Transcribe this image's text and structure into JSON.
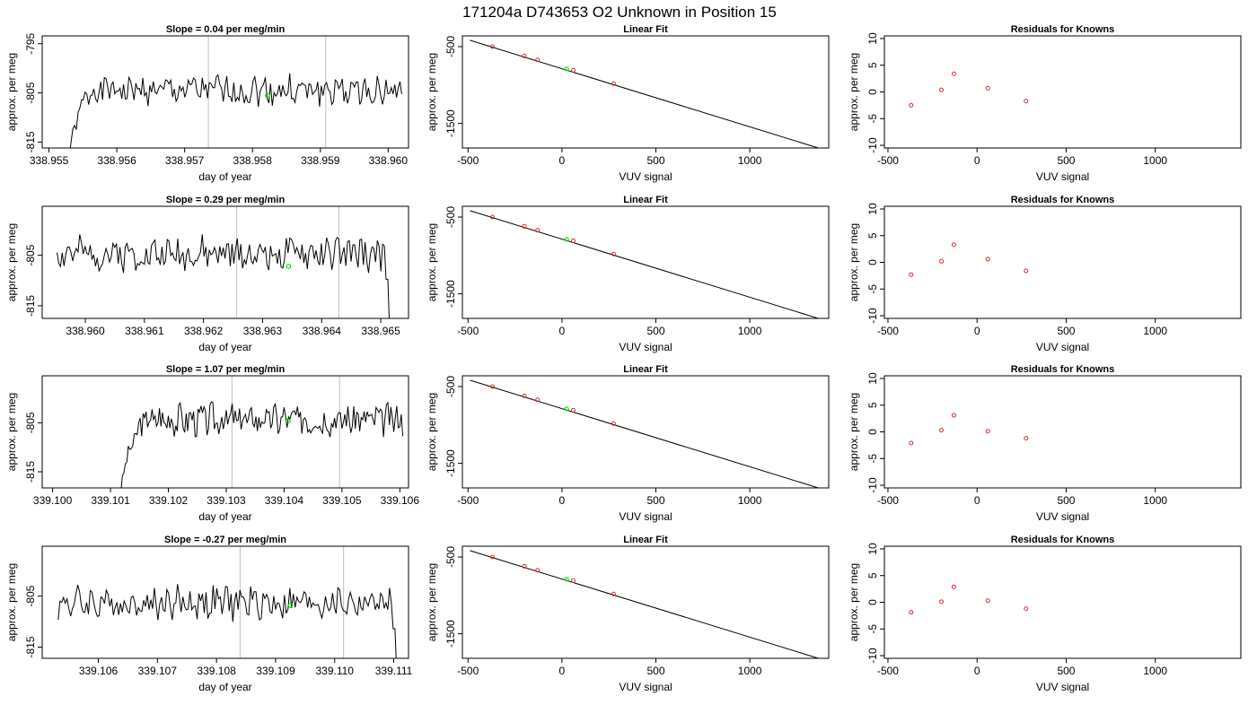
{
  "figure": {
    "title": "171204a      D743653    O2 Unknown in Position  15"
  },
  "colors": {
    "trace": "#000000",
    "marker_cycle": "#00e000",
    "vline": "#c8c8c8",
    "points": "#d03030"
  },
  "chart_data": [
    {
      "type": "line",
      "title": "Slope =  0.04  per meg/min",
      "xlabel": "day of year",
      "ylabel": "approx. per meg",
      "xlim": [
        338.9549,
        338.9603
      ],
      "ylim": [
        -816.2,
        -793.4
      ],
      "xticks": [
        338.955,
        338.956,
        338.957,
        338.958,
        338.959,
        338.96
      ],
      "xtick_labels": [
        "338.955",
        "338.956",
        "338.957",
        "338.958",
        "338.959",
        "338.960"
      ],
      "yticks": [
        -815,
        -805,
        -795
      ],
      "ytick_labels": [
        "-815",
        "-805",
        "-795"
      ],
      "vlines": [
        338.95735,
        338.95908
      ],
      "green_marker": {
        "x": 338.95822,
        "y": -805.5
      },
      "trace": {
        "x_start": 338.9553,
        "x_end": 338.9602,
        "rise_end": 338.9556,
        "start_y": -818,
        "base": -804.5,
        "amp": 1.6,
        "seed": 1,
        "end_y": null
      }
    },
    {
      "type": "line",
      "title": "Linear Fit",
      "xlabel": "VUV signal",
      "ylabel": "approx. per meg",
      "xlim": [
        -530,
        1420
      ],
      "ylim": [
        -1820,
        -360
      ],
      "xticks": [
        -500,
        0,
        500,
        1000
      ],
      "xtick_labels": [
        "-500",
        "0",
        "500",
        "1000"
      ],
      "yticks": [
        -500,
        -1500
      ],
      "ytick_labels": [
        "-500",
        "-1500"
      ],
      "fit_line": {
        "x": [
          -490,
          1400
        ],
        "y": [
          -417,
          -1847
        ]
      },
      "points": {
        "x": [
          -370,
          -200,
          -130,
          60,
          275
        ],
        "y": [
          -500,
          -622,
          -672,
          -808,
          -982
        ]
      },
      "green_point": {
        "x": 25,
        "y": -790
      }
    },
    {
      "type": "scatter",
      "title": "Residuals for Knowns",
      "xlabel": "VUV signal",
      "ylabel": "approx. per meg",
      "xlim": [
        -520,
        1480
      ],
      "ylim": [
        -10.5,
        10.5
      ],
      "xticks": [
        -500,
        0,
        500,
        1000
      ],
      "xtick_labels": [
        "-500",
        "0",
        "500",
        "1000"
      ],
      "yticks": [
        -10,
        -5,
        0,
        5,
        10
      ],
      "ytick_labels": [
        "-10",
        "-5",
        "0",
        "5",
        "10"
      ],
      "points": {
        "x": [
          -370,
          -200,
          -130,
          60,
          275
        ],
        "y": [
          -2.5,
          0.4,
          3.4,
          0.7,
          -1.7
        ]
      }
    },
    {
      "type": "line",
      "title": "Slope =  0.29  per meg/min",
      "xlabel": "day of year",
      "ylabel": "approx. per meg",
      "xlim": [
        338.95927,
        338.96547
      ],
      "ylim": [
        -817.5,
        -795.3
      ],
      "xticks": [
        338.96,
        338.961,
        338.962,
        338.963,
        338.964,
        338.965
      ],
      "xtick_labels": [
        "338.960",
        "338.961",
        "338.962",
        "338.963",
        "338.964",
        "338.965"
      ],
      "yticks": [
        -815,
        -805
      ],
      "ytick_labels": [
        "-815",
        "-805"
      ],
      "vlines": [
        338.96256,
        338.96429
      ],
      "green_marker": {
        "x": 338.96344,
        "y": -807.2
      },
      "trace": {
        "x_start": 338.95952,
        "x_end": 338.96515,
        "rise_end": null,
        "start_y": null,
        "base": -804.7,
        "amp": 1.7,
        "seed": 2,
        "end_y": -820
      }
    },
    {
      "type": "line",
      "title": "Linear Fit",
      "xlabel": "VUV signal",
      "ylabel": "approx. per meg",
      "xlim": [
        -530,
        1420
      ],
      "ylim": [
        -1820,
        -360
      ],
      "xticks": [
        -500,
        0,
        500,
        1000
      ],
      "xtick_labels": [
        "-500",
        "0",
        "500",
        "1000"
      ],
      "yticks": [
        -500,
        -1500
      ],
      "ytick_labels": [
        "-500",
        "-1500"
      ],
      "fit_line": {
        "x": [
          -490,
          1400
        ],
        "y": [
          -417,
          -1847
        ]
      },
      "points": {
        "x": [
          -370,
          -200,
          -130,
          60,
          275
        ],
        "y": [
          -500,
          -622,
          -672,
          -808,
          -982
        ]
      },
      "green_point": {
        "x": 25,
        "y": -790
      }
    },
    {
      "type": "scatter",
      "title": "Residuals for Knowns",
      "xlabel": "VUV signal",
      "ylabel": "approx. per meg",
      "xlim": [
        -520,
        1480
      ],
      "ylim": [
        -10.5,
        10.5
      ],
      "xticks": [
        -500,
        0,
        500,
        1000
      ],
      "xtick_labels": [
        "-500",
        "0",
        "500",
        "1000"
      ],
      "yticks": [
        -10,
        -5,
        0,
        5,
        10
      ],
      "ytick_labels": [
        "-10",
        "-5",
        "0",
        "5",
        "10"
      ],
      "points": {
        "x": [
          -370,
          -200,
          -130,
          60,
          275
        ],
        "y": [
          -2.3,
          0.2,
          3.3,
          0.6,
          -1.6
        ]
      }
    },
    {
      "type": "line",
      "title": "Slope =  1.07  per meg/min",
      "xlabel": "day of year",
      "ylabel": "approx. per meg",
      "xlim": [
        339.09982,
        339.10615
      ],
      "ylim": [
        -818.3,
        -795.4
      ],
      "xticks": [
        339.1,
        339.101,
        339.102,
        339.103,
        339.104,
        339.105,
        339.106
      ],
      "xtick_labels": [
        "339.100",
        "339.101",
        "339.102",
        "339.103",
        "339.104",
        "339.105",
        "339.106"
      ],
      "yticks": [
        -815,
        -805
      ],
      "ytick_labels": [
        "-815",
        "-805"
      ],
      "vlines": [
        339.1031,
        339.10496
      ],
      "green_marker": {
        "x": 339.10407,
        "y": -804.6
      },
      "trace": {
        "x_start": 339.10118,
        "x_end": 339.10605,
        "rise_end": 339.10158,
        "start_y": -819,
        "base": -804.3,
        "amp": 1.7,
        "seed": 3,
        "end_y": null
      }
    },
    {
      "type": "line",
      "title": "Linear Fit",
      "xlabel": "VUV signal",
      "ylabel": "approx. per meg",
      "xlim": [
        -530,
        1420
      ],
      "ylim": [
        -1820,
        -360
      ],
      "xticks": [
        -500,
        0,
        500,
        1000
      ],
      "xtick_labels": [
        "-500",
        "0",
        "500",
        "1000"
      ],
      "yticks": [
        -500,
        -1500
      ],
      "ytick_labels": [
        "-500",
        "-1500"
      ],
      "fit_line": {
        "x": [
          -490,
          1400
        ],
        "y": [
          -417,
          -1847
        ]
      },
      "points": {
        "x": [
          -370,
          -200,
          -130,
          60,
          275
        ],
        "y": [
          -500,
          -622,
          -672,
          -808,
          -982
        ]
      },
      "green_point": {
        "x": 25,
        "y": -790
      }
    },
    {
      "type": "scatter",
      "title": "Residuals for Knowns",
      "xlabel": "VUV signal",
      "ylabel": "approx. per meg",
      "xlim": [
        -520,
        1480
      ],
      "ylim": [
        -10.5,
        10.5
      ],
      "xticks": [
        -500,
        0,
        500,
        1000
      ],
      "xtick_labels": [
        "-500",
        "0",
        "500",
        "1000"
      ],
      "yticks": [
        -10,
        -5,
        0,
        5,
        10
      ],
      "ytick_labels": [
        "-10",
        "-5",
        "0",
        "5",
        "10"
      ],
      "points": {
        "x": [
          -370,
          -200,
          -130,
          60,
          275
        ],
        "y": [
          -2.1,
          0.3,
          3.1,
          0.1,
          -1.2
        ]
      }
    },
    {
      "type": "line",
      "title": "Slope =  -0.27  per meg/min",
      "xlabel": "day of year",
      "ylabel": "approx. per meg",
      "xlim": [
        339.10505,
        339.11125
      ],
      "ylim": [
        -817.2,
        -795.2
      ],
      "xticks": [
        339.106,
        339.107,
        339.108,
        339.109,
        339.11,
        339.111
      ],
      "xtick_labels": [
        "339.106",
        "339.107",
        "339.108",
        "339.109",
        "339.110",
        "339.111"
      ],
      "yticks": [
        -815,
        -805
      ],
      "ytick_labels": [
        "-815",
        "-805"
      ],
      "vlines": [
        339.1084,
        339.11015
      ],
      "green_marker": {
        "x": 339.10925,
        "y": -806.8
      },
      "trace": {
        "x_start": 339.10532,
        "x_end": 339.11105,
        "rise_end": null,
        "start_y": null,
        "base": -806.3,
        "amp": 1.7,
        "seed": 4,
        "end_y": -820
      }
    },
    {
      "type": "line",
      "title": "Linear Fit",
      "xlabel": "VUV signal",
      "ylabel": "approx. per meg",
      "xlim": [
        -530,
        1420
      ],
      "ylim": [
        -1820,
        -360
      ],
      "xticks": [
        -500,
        0,
        500,
        1000
      ],
      "xtick_labels": [
        "-500",
        "0",
        "500",
        "1000"
      ],
      "yticks": [
        -500,
        -1500
      ],
      "ytick_labels": [
        "-500",
        "-1500"
      ],
      "fit_line": {
        "x": [
          -490,
          1400
        ],
        "y": [
          -417,
          -1847
        ]
      },
      "points": {
        "x": [
          -370,
          -200,
          -130,
          60,
          275
        ],
        "y": [
          -500,
          -622,
          -672,
          -808,
          -982
        ]
      },
      "green_point": {
        "x": 25,
        "y": -790
      }
    },
    {
      "type": "scatter",
      "title": "Residuals for Knowns",
      "xlabel": "VUV signal",
      "ylabel": "approx. per meg",
      "xlim": [
        -520,
        1480
      ],
      "ylim": [
        -10.5,
        10.5
      ],
      "xticks": [
        -500,
        0,
        500,
        1000
      ],
      "xtick_labels": [
        "-500",
        "0",
        "500",
        "1000"
      ],
      "yticks": [
        -10,
        -5,
        0,
        5,
        10
      ],
      "ytick_labels": [
        "-10",
        "-5",
        "0",
        "5",
        "10"
      ],
      "points": {
        "x": [
          -370,
          -200,
          -130,
          60,
          275
        ],
        "y": [
          -1.9,
          0.1,
          2.9,
          0.3,
          -1.2
        ]
      }
    }
  ]
}
